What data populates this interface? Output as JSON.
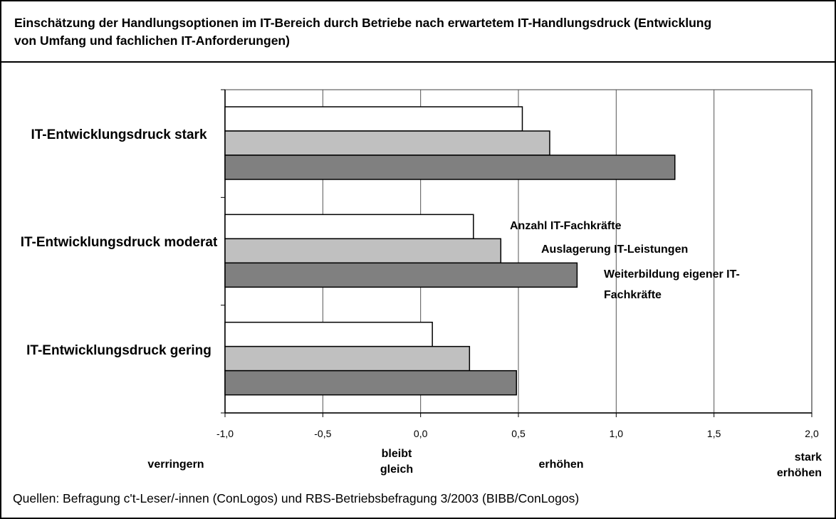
{
  "chart_data": {
    "type": "hbar",
    "title": "Einschätzung der Handlungsoptionen im IT-Bereich durch Betriebe nach erwartetem IT-Handlungsdruck (Entwicklung von Umfang und fachlichen IT-Anforderungen)",
    "categories": [
      "IT-Entwicklungsdruck stark",
      "IT-Entwicklungsdruck moderat",
      "IT-Entwicklungsdruck gering"
    ],
    "series": [
      {
        "name": "Anzahl IT-Fachkräfte",
        "color": "#ffffff",
        "values": [
          0.52,
          0.27,
          0.06
        ]
      },
      {
        "name": "Auslagerung IT-Leistungen",
        "color": "#c0c0c0",
        "values": [
          0.66,
          0.41,
          0.25
        ]
      },
      {
        "name": "Weiterbildung eigener IT-Fachkräfte",
        "color": "#808080",
        "values": [
          1.3,
          0.8,
          0.49
        ]
      }
    ],
    "xlim": [
      -1,
      2
    ],
    "xticks": [
      {
        "value": -1,
        "label": "-1,0"
      },
      {
        "value": -0.5,
        "label": "-0,5"
      },
      {
        "value": 0,
        "label": "0,0"
      },
      {
        "value": 0.5,
        "label": "0,5"
      },
      {
        "value": 1,
        "label": "1,0"
      },
      {
        "value": 1.5,
        "label": "1,5"
      },
      {
        "value": 2,
        "label": "2,0"
      }
    ],
    "grid": true,
    "scale_labels": [
      "verringern",
      "bleibt gleich",
      "erhöhen",
      "stark erhöhen"
    ],
    "source": "Quellen: Befragung c't-Leser/-innen (ConLogos) und RBS-Betriebsbefragung 3/2003 (BIBB/ConLogos)"
  }
}
